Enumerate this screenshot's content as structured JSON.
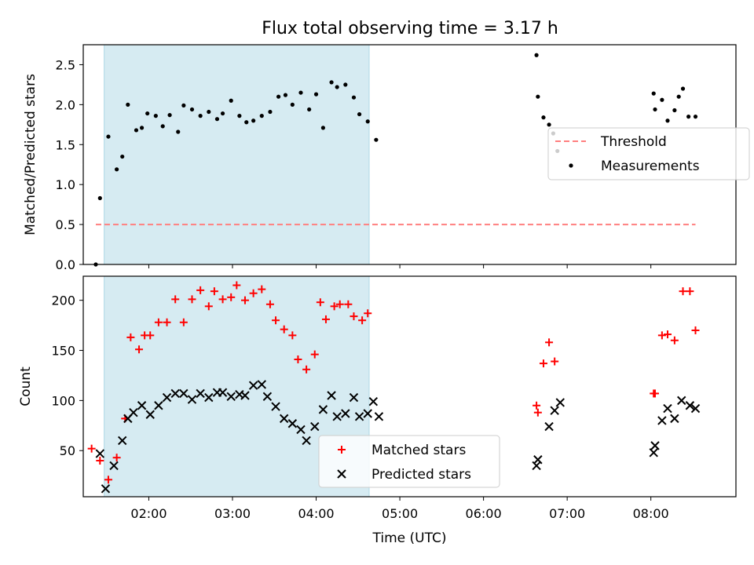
{
  "title": "Flux total observing time = 3.17 h",
  "colors": {
    "shade": "#add8e6",
    "threshold": "#ff7f7f",
    "matched": "#ff0000",
    "predicted": "#000000",
    "measurement": "#000000"
  },
  "chart_data": [
    {
      "type": "scatter",
      "ylabel": "Matched/Predicted stars",
      "xlabel": "",
      "xlim": [
        "01:13",
        "09:01"
      ],
      "ylim": [
        0,
        2.75
      ],
      "yticks": [
        0.0,
        0.5,
        1.0,
        1.5,
        2.0,
        2.5
      ],
      "ytick_labels": [
        "0.0",
        "0.5",
        "1.0",
        "1.5",
        "2.0",
        "2.5"
      ],
      "shaded_span": [
        "01:28",
        "04:38"
      ],
      "legend_position": "center right",
      "threshold": {
        "name": "Threshold",
        "value": 0.5,
        "x_range": [
          "01:22",
          "08:32"
        ],
        "style": "dashed"
      },
      "series": [
        {
          "name": "Measurements",
          "x": [
            "01:22",
            "01:25",
            "01:31",
            "01:37",
            "01:41",
            "01:45",
            "01:51",
            "01:55",
            "01:59",
            "02:05",
            "02:10",
            "02:15",
            "02:21",
            "02:25",
            "02:31",
            "02:37",
            "02:43",
            "02:49",
            "02:53",
            "02:59",
            "03:05",
            "03:10",
            "03:15",
            "03:21",
            "03:27",
            "03:33",
            "03:38",
            "03:43",
            "03:49",
            "03:55",
            "04:00",
            "04:05",
            "04:11",
            "04:15",
            "04:21",
            "04:27",
            "04:31",
            "04:37",
            "04:43",
            "06:38",
            "06:39",
            "06:43",
            "06:47",
            "06:50",
            "06:53",
            "08:02",
            "08:03",
            "08:08",
            "08:12",
            "08:17",
            "08:20",
            "08:23",
            "08:27",
            "08:32"
          ],
          "y": [
            0.0,
            0.83,
            1.6,
            1.19,
            1.35,
            2.0,
            1.68,
            1.71,
            1.89,
            1.86,
            1.73,
            1.87,
            1.66,
            1.99,
            1.94,
            1.86,
            1.91,
            1.82,
            1.89,
            2.05,
            1.86,
            1.78,
            1.8,
            1.86,
            1.91,
            2.1,
            2.12,
            2.0,
            2.15,
            1.94,
            2.13,
            1.71,
            2.28,
            2.22,
            2.25,
            2.09,
            1.88,
            1.79,
            1.56,
            2.62,
            2.1,
            1.84,
            1.75,
            1.64,
            1.42,
            2.14,
            1.94,
            2.06,
            1.8,
            1.93,
            2.1,
            2.2,
            1.85,
            1.85
          ]
        }
      ]
    },
    {
      "type": "scatter",
      "ylabel": "Count",
      "xlabel": "Time (UTC)",
      "xlim": [
        "01:13",
        "09:01"
      ],
      "ylim": [
        4,
        224
      ],
      "yticks": [
        50,
        100,
        150,
        200
      ],
      "ytick_labels": [
        "50",
        "100",
        "150",
        "200"
      ],
      "xticks": [
        "02:00",
        "03:00",
        "04:00",
        "05:00",
        "06:00",
        "07:00",
        "08:00"
      ],
      "shaded_span": [
        "01:28",
        "04:38"
      ],
      "legend_position": "lower center",
      "series": [
        {
          "name": "Matched stars",
          "marker": "plus",
          "x": [
            "01:19",
            "01:25",
            "01:31",
            "01:37",
            "01:43",
            "01:47",
            "01:53",
            "01:57",
            "02:01",
            "02:07",
            "02:13",
            "02:19",
            "02:25",
            "02:31",
            "02:37",
            "02:43",
            "02:47",
            "02:53",
            "02:59",
            "03:03",
            "03:09",
            "03:15",
            "03:21",
            "03:27",
            "03:31",
            "03:37",
            "03:43",
            "03:47",
            "03:53",
            "03:59",
            "04:03",
            "04:07",
            "04:13",
            "04:17",
            "04:23",
            "04:27",
            "04:33",
            "04:37",
            "06:38",
            "06:39",
            "06:43",
            "06:47",
            "06:51",
            "08:02",
            "08:03",
            "08:08",
            "08:12",
            "08:17",
            "08:23",
            "08:28",
            "08:32"
          ],
          "y": [
            52,
            40,
            21,
            43,
            82,
            163,
            151,
            165,
            165,
            178,
            178,
            201,
            178,
            201,
            210,
            194,
            209,
            201,
            203,
            215,
            200,
            207,
            211,
            196,
            180,
            171,
            165,
            141,
            131,
            146,
            198,
            181,
            194,
            196,
            196,
            184,
            180,
            187,
            95,
            88,
            137,
            158,
            139,
            107,
            107,
            165,
            166,
            160,
            209,
            209,
            170
          ]
        },
        {
          "name": "Predicted stars",
          "marker": "x",
          "x": [
            "01:25",
            "01:29",
            "01:35",
            "01:41",
            "01:45",
            "01:49",
            "01:55",
            "02:01",
            "02:07",
            "02:13",
            "02:19",
            "02:25",
            "02:31",
            "02:37",
            "02:43",
            "02:49",
            "02:53",
            "02:59",
            "03:05",
            "03:09",
            "03:15",
            "03:21",
            "03:25",
            "03:31",
            "03:37",
            "03:43",
            "03:49",
            "03:53",
            "03:59",
            "04:05",
            "04:11",
            "04:15",
            "04:21",
            "04:27",
            "04:31",
            "04:37",
            "04:41",
            "04:45",
            "06:38",
            "06:39",
            "06:47",
            "06:51",
            "06:55",
            "08:02",
            "08:03",
            "08:08",
            "08:12",
            "08:17",
            "08:22",
            "08:28",
            "08:32"
          ],
          "y": [
            47,
            12,
            35,
            60,
            82,
            88,
            95,
            86,
            95,
            103,
            107,
            107,
            101,
            107,
            103,
            108,
            108,
            104,
            106,
            105,
            115,
            116,
            104,
            94,
            82,
            77,
            71,
            60,
            74,
            91,
            105,
            84,
            87,
            103,
            84,
            87,
            99,
            84,
            35,
            41,
            74,
            90,
            98,
            48,
            55,
            80,
            92,
            82,
            100,
            95,
            92
          ]
        }
      ]
    }
  ]
}
